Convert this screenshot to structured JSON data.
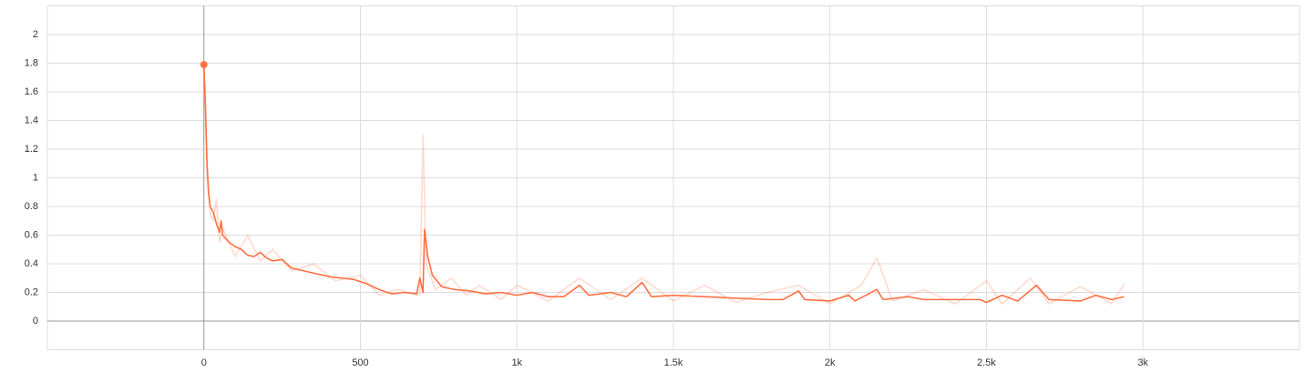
{
  "chart_data": {
    "type": "line",
    "xlim": [
      -500,
      3500
    ],
    "ylim": [
      -0.2,
      2.2
    ],
    "xticks": [
      0,
      500,
      {
        "value": 1000,
        "label": "1k"
      },
      {
        "value": 1500,
        "label": "1.5k"
      },
      {
        "value": 2000,
        "label": "2k"
      },
      {
        "value": 2500,
        "label": "2.5k"
      },
      {
        "value": 3000,
        "label": "3k"
      }
    ],
    "yticks": [
      0,
      0.2,
      0.4,
      0.6,
      0.8,
      1,
      1.2,
      1.4,
      1.6,
      1.8,
      2
    ],
    "grid": true,
    "series": [
      {
        "color": "#ff7043",
        "opacity": 0.25,
        "x": [
          0,
          10,
          20,
          30,
          40,
          50,
          60,
          100,
          140,
          180,
          220,
          280,
          350,
          420,
          500,
          560,
          620,
          690,
          700,
          710,
          740,
          790,
          840,
          880,
          950,
          1000,
          1100,
          1200,
          1300,
          1400,
          1500,
          1600,
          1700,
          1800,
          1900,
          2000,
          2100,
          2150,
          2200,
          2300,
          2400,
          2500,
          2550,
          2640,
          2700,
          2800,
          2900,
          2940
        ],
        "values": [
          1.79,
          1.0,
          0.75,
          0.7,
          0.85,
          0.55,
          0.65,
          0.45,
          0.6,
          0.42,
          0.5,
          0.35,
          0.4,
          0.28,
          0.32,
          0.18,
          0.22,
          0.18,
          1.3,
          0.4,
          0.22,
          0.3,
          0.18,
          0.25,
          0.15,
          0.25,
          0.14,
          0.3,
          0.15,
          0.3,
          0.14,
          0.25,
          0.13,
          0.2,
          0.25,
          0.12,
          0.25,
          0.44,
          0.14,
          0.22,
          0.12,
          0.28,
          0.12,
          0.3,
          0.12,
          0.24,
          0.12,
          0.26
        ]
      },
      {
        "color": "#ff7043",
        "opacity": 1,
        "x": [
          0,
          5,
          10,
          15,
          20,
          30,
          40,
          50,
          55,
          60,
          80,
          100,
          120,
          140,
          160,
          180,
          200,
          220,
          250,
          280,
          320,
          360,
          400,
          440,
          480,
          520,
          560,
          600,
          640,
          680,
          690,
          700,
          705,
          715,
          730,
          760,
          800,
          850,
          900,
          950,
          1000,
          1050,
          1100,
          1150,
          1200,
          1230,
          1300,
          1350,
          1400,
          1430,
          1500,
          1600,
          1700,
          1800,
          1850,
          1900,
          1920,
          2000,
          2060,
          2080,
          2150,
          2170,
          2250,
          2300,
          2400,
          2480,
          2500,
          2550,
          2600,
          2660,
          2700,
          2800,
          2850,
          2900,
          2940
        ],
        "values": [
          1.79,
          1.5,
          1.1,
          0.9,
          0.8,
          0.76,
          0.68,
          0.62,
          0.7,
          0.6,
          0.55,
          0.52,
          0.5,
          0.46,
          0.45,
          0.48,
          0.44,
          0.42,
          0.43,
          0.37,
          0.35,
          0.33,
          0.31,
          0.3,
          0.29,
          0.26,
          0.22,
          0.19,
          0.2,
          0.19,
          0.3,
          0.2,
          0.64,
          0.45,
          0.32,
          0.24,
          0.22,
          0.21,
          0.19,
          0.2,
          0.18,
          0.2,
          0.17,
          0.17,
          0.25,
          0.18,
          0.2,
          0.17,
          0.27,
          0.17,
          0.18,
          0.17,
          0.16,
          0.15,
          0.15,
          0.21,
          0.15,
          0.14,
          0.18,
          0.14,
          0.22,
          0.15,
          0.17,
          0.15,
          0.15,
          0.15,
          0.13,
          0.18,
          0.14,
          0.25,
          0.15,
          0.14,
          0.18,
          0.15,
          0.17
        ]
      }
    ]
  }
}
